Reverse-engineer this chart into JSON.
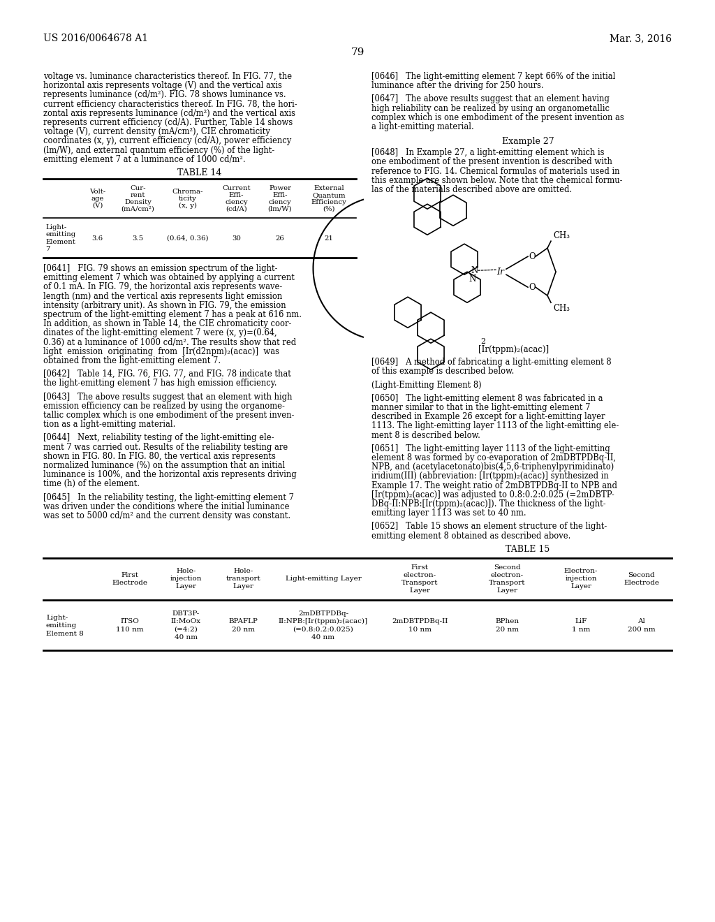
{
  "page_number": "79",
  "patent_number": "US 2016/0064678 A1",
  "patent_date": "Mar. 3, 2016",
  "background_color": "#ffffff",
  "text_color": "#000000"
}
